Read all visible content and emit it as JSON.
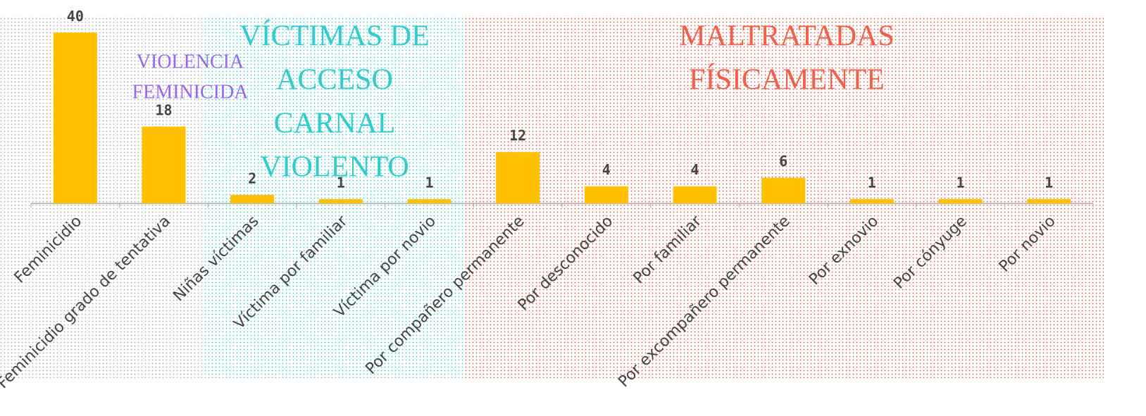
{
  "chart_data": {
    "type": "bar",
    "categories": [
      "Feminicidio",
      "Feminicidio grado de tentativa",
      "Niñas víctimas",
      "Víctima por familiar",
      "Víctima por novio",
      "Por compañero permanente",
      "Por desconocido",
      "Por familiar",
      "Por excompañero permanente",
      "Por exnovio",
      "Por cónyuge",
      "Por novio"
    ],
    "values": [
      40,
      18,
      2,
      1,
      1,
      12,
      4,
      4,
      6,
      1,
      1,
      1
    ],
    "color": "#ffc000",
    "ylim": [
      0,
      44
    ],
    "annotations": [
      {
        "lines": [
          "VIOLENCIA",
          "FEMINICIDA"
        ],
        "color": "#9966ee"
      },
      {
        "lines": [
          "VÍCTIMAS DE",
          "ACCESO",
          "CARNAL",
          "VIOLENTO"
        ],
        "color": "#33cccc"
      },
      {
        "lines": [
          "MALTRATADAS",
          "FÍSICAMENTE"
        ],
        "color": "#f0604a"
      }
    ]
  }
}
